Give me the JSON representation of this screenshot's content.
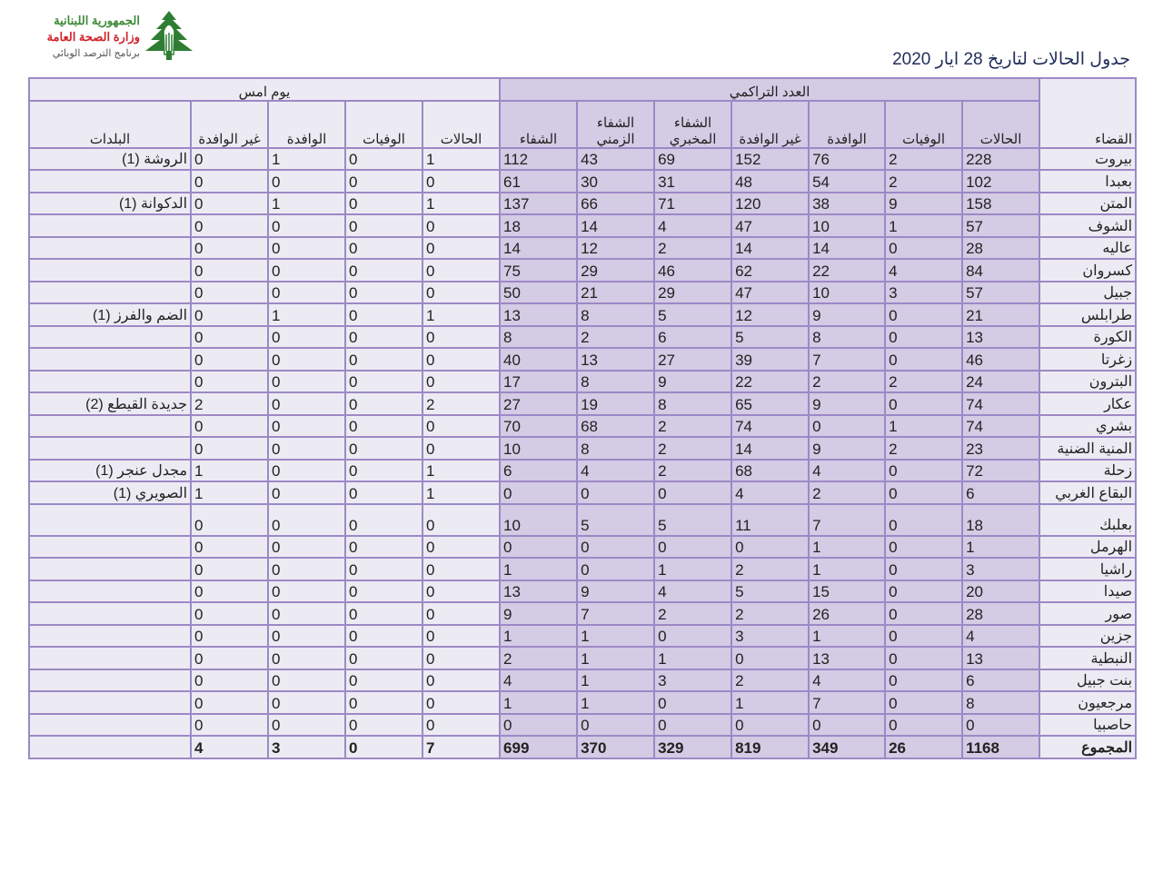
{
  "logo": {
    "line1": "الجمهورية اللبنانية",
    "line2": "وزارة الصحة العامة",
    "line3": "برنامج الترصد الوبائي"
  },
  "title": "جدول الحالات لتاريخ 28  ايار 2020",
  "colors": {
    "border": "#9c89c6",
    "cumulative_bg": "#d4cbe4",
    "cell_bg": "#ecebf3",
    "title": "#1f2d5a"
  },
  "table": {
    "group_cumulative": "العدد التراكمي",
    "group_yesterday": "يوم امس",
    "headers": {
      "district": "القضاء",
      "cases": "الحالات",
      "deaths": "الوفيات",
      "imported": "الوافدة",
      "non_imported": "غير الوافدة",
      "lab_recovery": "الشفاء المخبري",
      "chronic_recovery": "الشفاء الزمني",
      "recovery": "الشفاء",
      "y_cases": "الحالات",
      "y_deaths": "الوفيات",
      "y_imported": "الوافدة",
      "y_non_imported": "غير الوافدة",
      "towns": "البلدات"
    },
    "rows": [
      [
        "بيروت",
        228,
        2,
        76,
        152,
        69,
        43,
        112,
        1,
        0,
        1,
        0,
        "الروشة (1)"
      ],
      [
        "بعبدا",
        102,
        2,
        54,
        48,
        31,
        30,
        61,
        0,
        0,
        0,
        0,
        ""
      ],
      [
        "المتن",
        158,
        9,
        38,
        120,
        71,
        66,
        137,
        1,
        0,
        1,
        0,
        "الدكوانة (1)"
      ],
      [
        "الشوف",
        57,
        1,
        10,
        47,
        4,
        14,
        18,
        0,
        0,
        0,
        0,
        ""
      ],
      [
        "عاليه",
        28,
        0,
        14,
        14,
        2,
        12,
        14,
        0,
        0,
        0,
        0,
        ""
      ],
      [
        "كسروان",
        84,
        4,
        22,
        62,
        46,
        29,
        75,
        0,
        0,
        0,
        0,
        ""
      ],
      [
        "جبيل",
        57,
        3,
        10,
        47,
        29,
        21,
        50,
        0,
        0,
        0,
        0,
        ""
      ],
      [
        "طرابلس",
        21,
        0,
        9,
        12,
        5,
        8,
        13,
        1,
        0,
        1,
        0,
        "الضم والفرز (1)"
      ],
      [
        "الكورة",
        13,
        0,
        8,
        5,
        6,
        2,
        8,
        0,
        0,
        0,
        0,
        ""
      ],
      [
        "زغرتا",
        46,
        0,
        7,
        39,
        27,
        13,
        40,
        0,
        0,
        0,
        0,
        ""
      ],
      [
        "البترون",
        24,
        2,
        2,
        22,
        9,
        8,
        17,
        0,
        0,
        0,
        0,
        ""
      ],
      [
        "عكار",
        74,
        0,
        9,
        65,
        8,
        19,
        27,
        2,
        0,
        0,
        2,
        "جديدة القيطع (2)"
      ],
      [
        "بشري",
        74,
        1,
        0,
        74,
        2,
        68,
        70,
        0,
        0,
        0,
        0,
        ""
      ],
      [
        "المنية الضنية",
        23,
        2,
        9,
        14,
        2,
        8,
        10,
        0,
        0,
        0,
        0,
        ""
      ],
      [
        "زحلة",
        72,
        0,
        4,
        68,
        2,
        4,
        6,
        1,
        0,
        0,
        1,
        "مجدل عنجر (1)"
      ],
      [
        "البقاع الغربي",
        6,
        0,
        2,
        4,
        0,
        0,
        0,
        1,
        0,
        0,
        1,
        "الصويري (1)"
      ],
      [
        "بعلبك",
        18,
        0,
        7,
        11,
        5,
        5,
        10,
        0,
        0,
        0,
        0,
        ""
      ],
      [
        "الهرمل",
        1,
        0,
        1,
        0,
        0,
        0,
        0,
        0,
        0,
        0,
        0,
        ""
      ],
      [
        "راشيا",
        3,
        0,
        1,
        2,
        1,
        0,
        1,
        0,
        0,
        0,
        0,
        ""
      ],
      [
        "صيدا",
        20,
        0,
        15,
        5,
        4,
        9,
        13,
        0,
        0,
        0,
        0,
        ""
      ],
      [
        "صور",
        28,
        0,
        26,
        2,
        2,
        7,
        9,
        0,
        0,
        0,
        0,
        ""
      ],
      [
        "جزين",
        4,
        0,
        1,
        3,
        0,
        1,
        1,
        0,
        0,
        0,
        0,
        ""
      ],
      [
        "النبطية",
        13,
        0,
        13,
        0,
        1,
        1,
        2,
        0,
        0,
        0,
        0,
        ""
      ],
      [
        "بنت جبيل",
        6,
        0,
        4,
        2,
        3,
        1,
        4,
        0,
        0,
        0,
        0,
        ""
      ],
      [
        "مرجعيون",
        8,
        0,
        7,
        1,
        0,
        1,
        1,
        0,
        0,
        0,
        0,
        ""
      ],
      [
        "حاصبيا",
        0,
        0,
        0,
        0,
        0,
        0,
        0,
        0,
        0,
        0,
        0,
        ""
      ]
    ],
    "total": [
      "المجموع",
      1168,
      26,
      349,
      819,
      329,
      370,
      699,
      7,
      0,
      3,
      4,
      ""
    ]
  }
}
